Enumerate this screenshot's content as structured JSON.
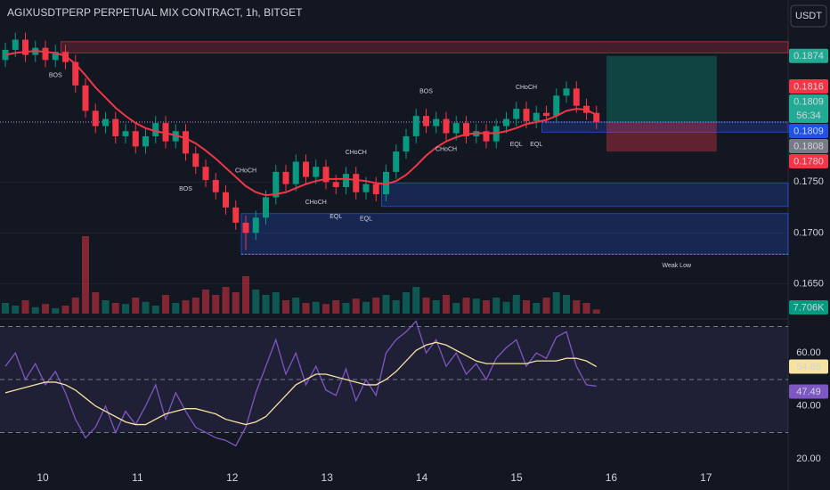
{
  "chart_data": [
    {
      "type": "candlestick",
      "title": "AGIXUSDTPERP PERPETUAL MIX CONTRACT, 1h, BITGET",
      "currency": "USDT",
      "up_color": "#089981",
      "down_color": "#f23645",
      "ma_color": "#f23645",
      "ylim": [
        0.1618,
        0.1929
      ],
      "yticks": [
        {
          "value": 0.165,
          "label": "0.1650"
        },
        {
          "value": 0.17,
          "label": "0.1700"
        },
        {
          "value": 0.175,
          "label": "0.1750"
        }
      ],
      "grid": true,
      "xticks": [
        10,
        11,
        12,
        13,
        14,
        15,
        16,
        17
      ],
      "open": [
        0.187,
        0.188,
        0.189,
        0.1875,
        0.1882,
        0.187,
        0.1878,
        0.1868,
        0.1845,
        0.182,
        0.1805,
        0.1812,
        0.1795,
        0.18,
        0.1785,
        0.1795,
        0.1808,
        0.179,
        0.18,
        0.1778,
        0.1765,
        0.1752,
        0.174,
        0.1725,
        0.171,
        0.17,
        0.1715,
        0.1735,
        0.176,
        0.1748,
        0.177,
        0.1755,
        0.1765,
        0.175,
        0.1745,
        0.1758,
        0.174,
        0.1748,
        0.1738,
        0.176,
        0.178,
        0.1795,
        0.1815,
        0.1805,
        0.1812,
        0.1798,
        0.1808,
        0.1795,
        0.18,
        0.179,
        0.1805,
        0.1812,
        0.1822,
        0.181,
        0.1818,
        0.1815,
        0.1835,
        0.1842,
        0.1825,
        0.1818
      ],
      "high": [
        0.1887,
        0.1897,
        0.1897,
        0.1889,
        0.1889,
        0.1885,
        0.1885,
        0.1875,
        0.1852,
        0.1827,
        0.1819,
        0.1819,
        0.1807,
        0.1807,
        0.1802,
        0.1815,
        0.1815,
        0.1807,
        0.1807,
        0.1785,
        0.1772,
        0.1759,
        0.1747,
        0.1732,
        0.1717,
        0.1722,
        0.1742,
        0.1767,
        0.1767,
        0.1777,
        0.1777,
        0.1772,
        0.1772,
        0.1757,
        0.1765,
        0.1765,
        0.1755,
        0.1755,
        0.1767,
        0.1787,
        0.1802,
        0.1822,
        0.1822,
        0.1819,
        0.1819,
        0.1815,
        0.1815,
        0.1807,
        0.1807,
        0.1812,
        0.1819,
        0.1829,
        0.1829,
        0.1825,
        0.1825,
        0.1842,
        0.1849,
        0.1849,
        0.1832,
        0.1825
      ],
      "low": [
        0.1863,
        0.1873,
        0.1868,
        0.1868,
        0.1863,
        0.1863,
        0.1861,
        0.1838,
        0.1813,
        0.1798,
        0.1798,
        0.1788,
        0.1788,
        0.1778,
        0.1778,
        0.1788,
        0.1783,
        0.1783,
        0.1771,
        0.1758,
        0.1745,
        0.1733,
        0.1718,
        0.1703,
        0.1683,
        0.1693,
        0.1708,
        0.1728,
        0.1741,
        0.1741,
        0.1748,
        0.1748,
        0.1743,
        0.1738,
        0.1738,
        0.1733,
        0.1733,
        0.1731,
        0.1731,
        0.1753,
        0.1773,
        0.1788,
        0.1798,
        0.1798,
        0.1791,
        0.1791,
        0.1788,
        0.1788,
        0.1783,
        0.1783,
        0.1798,
        0.1805,
        0.1803,
        0.1803,
        0.1808,
        0.1808,
        0.1828,
        0.1818,
        0.1811,
        0.1802
      ],
      "close": [
        0.188,
        0.189,
        0.1875,
        0.1882,
        0.187,
        0.1878,
        0.1868,
        0.1845,
        0.182,
        0.1805,
        0.1812,
        0.1795,
        0.18,
        0.1785,
        0.1795,
        0.1808,
        0.179,
        0.18,
        0.1778,
        0.1765,
        0.1752,
        0.174,
        0.1725,
        0.171,
        0.17,
        0.1715,
        0.1735,
        0.176,
        0.1748,
        0.177,
        0.1755,
        0.1765,
        0.175,
        0.1745,
        0.1758,
        0.174,
        0.1748,
        0.1738,
        0.176,
        0.178,
        0.1795,
        0.1815,
        0.1805,
        0.1812,
        0.1798,
        0.1808,
        0.1795,
        0.18,
        0.179,
        0.1805,
        0.1812,
        0.1822,
        0.181,
        0.1818,
        0.1815,
        0.1835,
        0.1842,
        0.1825,
        0.1818,
        0.1809
      ],
      "ma": [
        0.1875,
        0.1877,
        0.1878,
        0.1879,
        0.1878,
        0.1877,
        0.1874,
        0.1866,
        0.1855,
        0.1843,
        0.1833,
        0.1823,
        0.1815,
        0.1808,
        0.1803,
        0.18,
        0.1798,
        0.1796,
        0.1793,
        0.1788,
        0.1781,
        0.1773,
        0.1764,
        0.1755,
        0.1746,
        0.174,
        0.1737,
        0.1738,
        0.174,
        0.1744,
        0.1748,
        0.1751,
        0.1753,
        0.1753,
        0.1753,
        0.1752,
        0.1751,
        0.1749,
        0.1748,
        0.1751,
        0.1757,
        0.1766,
        0.1776,
        0.1784,
        0.179,
        0.1794,
        0.1797,
        0.1798,
        0.1798,
        0.1798,
        0.18,
        0.1803,
        0.1807,
        0.1809,
        0.1811,
        0.1815,
        0.182,
        0.1822,
        0.1821,
        0.1816
      ],
      "volume": [
        20,
        15,
        25,
        12,
        18,
        10,
        15,
        30,
        145,
        40,
        25,
        20,
        18,
        30,
        22,
        15,
        35,
        20,
        25,
        30,
        45,
        35,
        50,
        40,
        70,
        45,
        35,
        40,
        25,
        30,
        20,
        22,
        18,
        25,
        20,
        28,
        22,
        30,
        35,
        25,
        40,
        50,
        30,
        25,
        35,
        20,
        30,
        28,
        25,
        30,
        22,
        35,
        25,
        20,
        30,
        40,
        35,
        25,
        20,
        7.706
      ],
      "zones": [
        {
          "low": 0.1877,
          "high": 0.1888,
          "start": 6,
          "color": "#f23645"
        },
        {
          "low": 0.1726,
          "high": 0.1749,
          "start": 38,
          "color": "#2962ff"
        },
        {
          "low": 0.1679,
          "high": 0.1719,
          "start": 24,
          "color": "#2962ff"
        },
        {
          "low": 0.1799,
          "high": 0.1809,
          "start": 54,
          "color": "#2962ff"
        }
      ],
      "position": {
        "entry": 0.1809,
        "target": 0.1874,
        "stop": 0.178,
        "start": 60,
        "end": 71
      },
      "annotations": [
        {
          "text": "BOS",
          "index": 5,
          "price": 0.1855,
          "color": "#f23645"
        },
        {
          "text": "BOS",
          "index": 18,
          "price": 0.1743,
          "color": "#f23645"
        },
        {
          "text": "CHoCH",
          "index": 24,
          "price": 0.1761,
          "color": "#22ab94"
        },
        {
          "text": "CHoCH",
          "index": 31,
          "price": 0.173,
          "color": "#f23645"
        },
        {
          "text": "EQL",
          "index": 33,
          "price": 0.1716,
          "color": "#22ab94"
        },
        {
          "text": "CHoCH",
          "index": 35,
          "price": 0.1779,
          "color": "#22ab94"
        },
        {
          "text": "EQL",
          "index": 36,
          "price": 0.1714,
          "color": "#22ab94"
        },
        {
          "text": "BOS",
          "index": 42,
          "price": 0.1839,
          "color": "#22ab94"
        },
        {
          "text": "CHoCH",
          "index": 44,
          "price": 0.1782,
          "color": "#f23645"
        },
        {
          "text": "EQL",
          "index": 51,
          "price": 0.1787,
          "color": "#22ab94"
        },
        {
          "text": "CHoCH",
          "index": 52,
          "price": 0.1843,
          "color": "#22ab94"
        },
        {
          "text": "EQL",
          "index": 53,
          "price": 0.1787,
          "color": "#22ab94"
        },
        {
          "text": "Weak Low",
          "index": 67,
          "price": 0.1668,
          "color": "#22ab94"
        }
      ],
      "price_tags": [
        {
          "value": 0.1874,
          "label": "0.1874",
          "color": "#22ab94"
        },
        {
          "value": 0.1816,
          "label": "0.1816",
          "color": "#f23645"
        },
        {
          "value": 0.1809,
          "label": "0.1809",
          "note": "56:34",
          "color": "#22ab94"
        },
        {
          "value": 0.1809,
          "label": "0.1809",
          "color": "#1e53e5"
        },
        {
          "value": 0.1808,
          "label": "0.1808",
          "color": "#787b86"
        },
        {
          "value": 0.178,
          "label": "0.1780",
          "color": "#f23645"
        }
      ],
      "volume_tag": {
        "value": 7.706,
        "label": "7.706K",
        "color": "#089981"
      }
    },
    {
      "type": "line",
      "ylim": [
        10,
        71.5
      ],
      "yticks": [
        {
          "value": 20,
          "label": "20.00"
        },
        {
          "value": 40,
          "label": "40.00"
        },
        {
          "value": 60,
          "label": "60.00"
        }
      ],
      "bands": [
        30,
        50,
        70
      ],
      "band_color": "#7e57c2",
      "series": [
        {
          "color": "#7e57c2",
          "values": [
            55,
            60,
            50,
            56,
            48,
            53,
            45,
            35,
            28,
            32,
            40,
            30,
            38,
            33,
            40,
            48,
            35,
            45,
            38,
            32,
            30,
            28,
            27,
            25,
            32,
            45,
            55,
            65,
            52,
            60,
            48,
            55,
            46,
            44,
            54,
            42,
            50,
            44,
            60,
            65,
            68,
            72,
            60,
            65,
            55,
            60,
            52,
            56,
            50,
            58,
            62,
            65,
            55,
            60,
            58,
            66,
            68,
            55,
            48,
            47.49
          ]
        },
        {
          "color": "#f7e3a1",
          "values": [
            45,
            46,
            47,
            48,
            49,
            49,
            48,
            46,
            43,
            40,
            38,
            36,
            34,
            33,
            33,
            35,
            37,
            38,
            39,
            39,
            38,
            37,
            35,
            34,
            33,
            34,
            36,
            40,
            44,
            48,
            50,
            52,
            52,
            51,
            50,
            49,
            48,
            48,
            50,
            53,
            57,
            61,
            63,
            64,
            63,
            61,
            59,
            57,
            56,
            56,
            56,
            56,
            56,
            57,
            57,
            57,
            58,
            58,
            57,
            54.86
          ]
        }
      ],
      "tags": [
        {
          "value": 54.86,
          "label": "54.86",
          "color": "#f7e3a1",
          "text_color": "#131722"
        },
        {
          "value": 47.49,
          "label": "47.49",
          "color": "#7e57c2",
          "text_color": "#ffffff"
        }
      ]
    }
  ]
}
